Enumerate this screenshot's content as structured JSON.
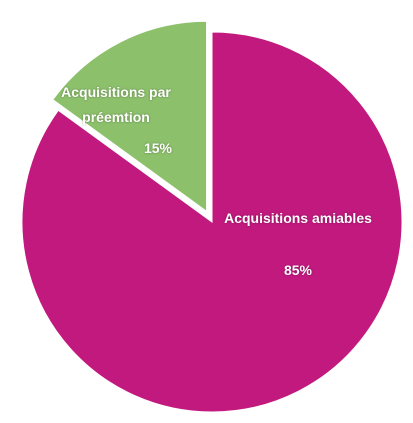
{
  "chart_data": {
    "type": "pie",
    "categories": [
      "Acquisitions amiables",
      "Acquisitions par préemtion"
    ],
    "values": [
      85,
      15
    ],
    "value_labels": [
      "85%",
      "15%"
    ],
    "colors": [
      "#c2197f",
      "#8cc06b"
    ]
  }
}
